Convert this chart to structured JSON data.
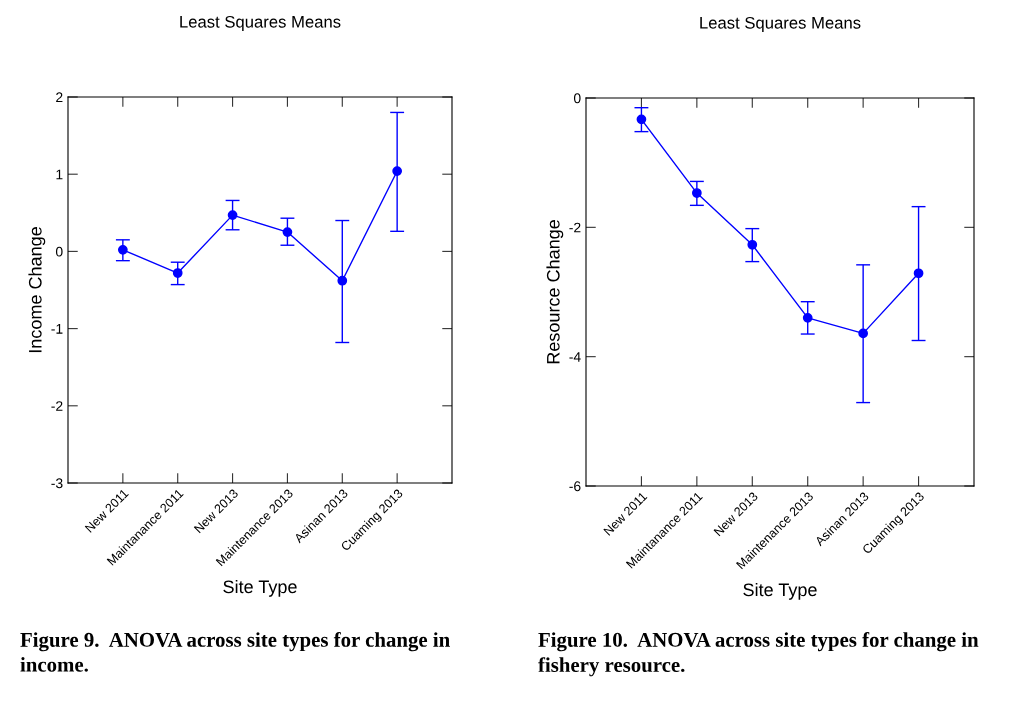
{
  "chart_data": [
    {
      "type": "line",
      "title": "Least Squares Means",
      "xlabel": "Site Type",
      "ylabel": "Income Change",
      "categories": [
        "New 2011",
        "Maintanance 2011",
        "New 2013",
        "Maintenance 2013",
        "Asinan 2013",
        "Cuaming 2013"
      ],
      "series": [
        {
          "color": "#0000ff",
          "values": [
            0.02,
            -0.28,
            0.47,
            0.25,
            -0.38,
            1.04
          ],
          "errors": [
            [
              -0.12,
              0.15
            ],
            [
              -0.43,
              -0.14
            ],
            [
              0.28,
              0.66
            ],
            [
              0.08,
              0.43
            ],
            [
              -1.18,
              0.4
            ],
            [
              0.26,
              1.8
            ]
          ]
        }
      ],
      "ylim": [
        -3,
        2
      ],
      "yticks": [
        -3,
        -2,
        -1,
        0,
        1,
        2
      ],
      "marker": "circle",
      "line_style": "solid",
      "grid": false,
      "legend": false,
      "annotations": [
        "Figure 9.  ANOVA across site types for change in income."
      ]
    },
    {
      "type": "line",
      "title": "Least Squares Means",
      "xlabel": "Site Type",
      "ylabel": "Resource Change",
      "categories": [
        "New 2011",
        "Maintanance 2011",
        "New 2013",
        "Maintenance 2013",
        "Asinan 2013",
        "Cuaming 2013"
      ],
      "series": [
        {
          "color": "#0000ff",
          "values": [
            -0.33,
            -1.47,
            -2.27,
            -3.4,
            -3.64,
            -2.71
          ],
          "errors": [
            [
              -0.52,
              -0.15
            ],
            [
              -1.66,
              -1.29
            ],
            [
              -2.53,
              -2.02
            ],
            [
              -3.65,
              -3.15
            ],
            [
              -4.71,
              -2.58
            ],
            [
              -3.75,
              -1.68
            ]
          ]
        }
      ],
      "ylim": [
        -6,
        0
      ],
      "yticks": [
        -6,
        -4,
        -2,
        0
      ],
      "marker": "circle",
      "line_style": "solid",
      "grid": false,
      "legend": false,
      "annotations": [
        "Figure 10.  ANOVA across site types for change in fishery resource."
      ]
    }
  ]
}
